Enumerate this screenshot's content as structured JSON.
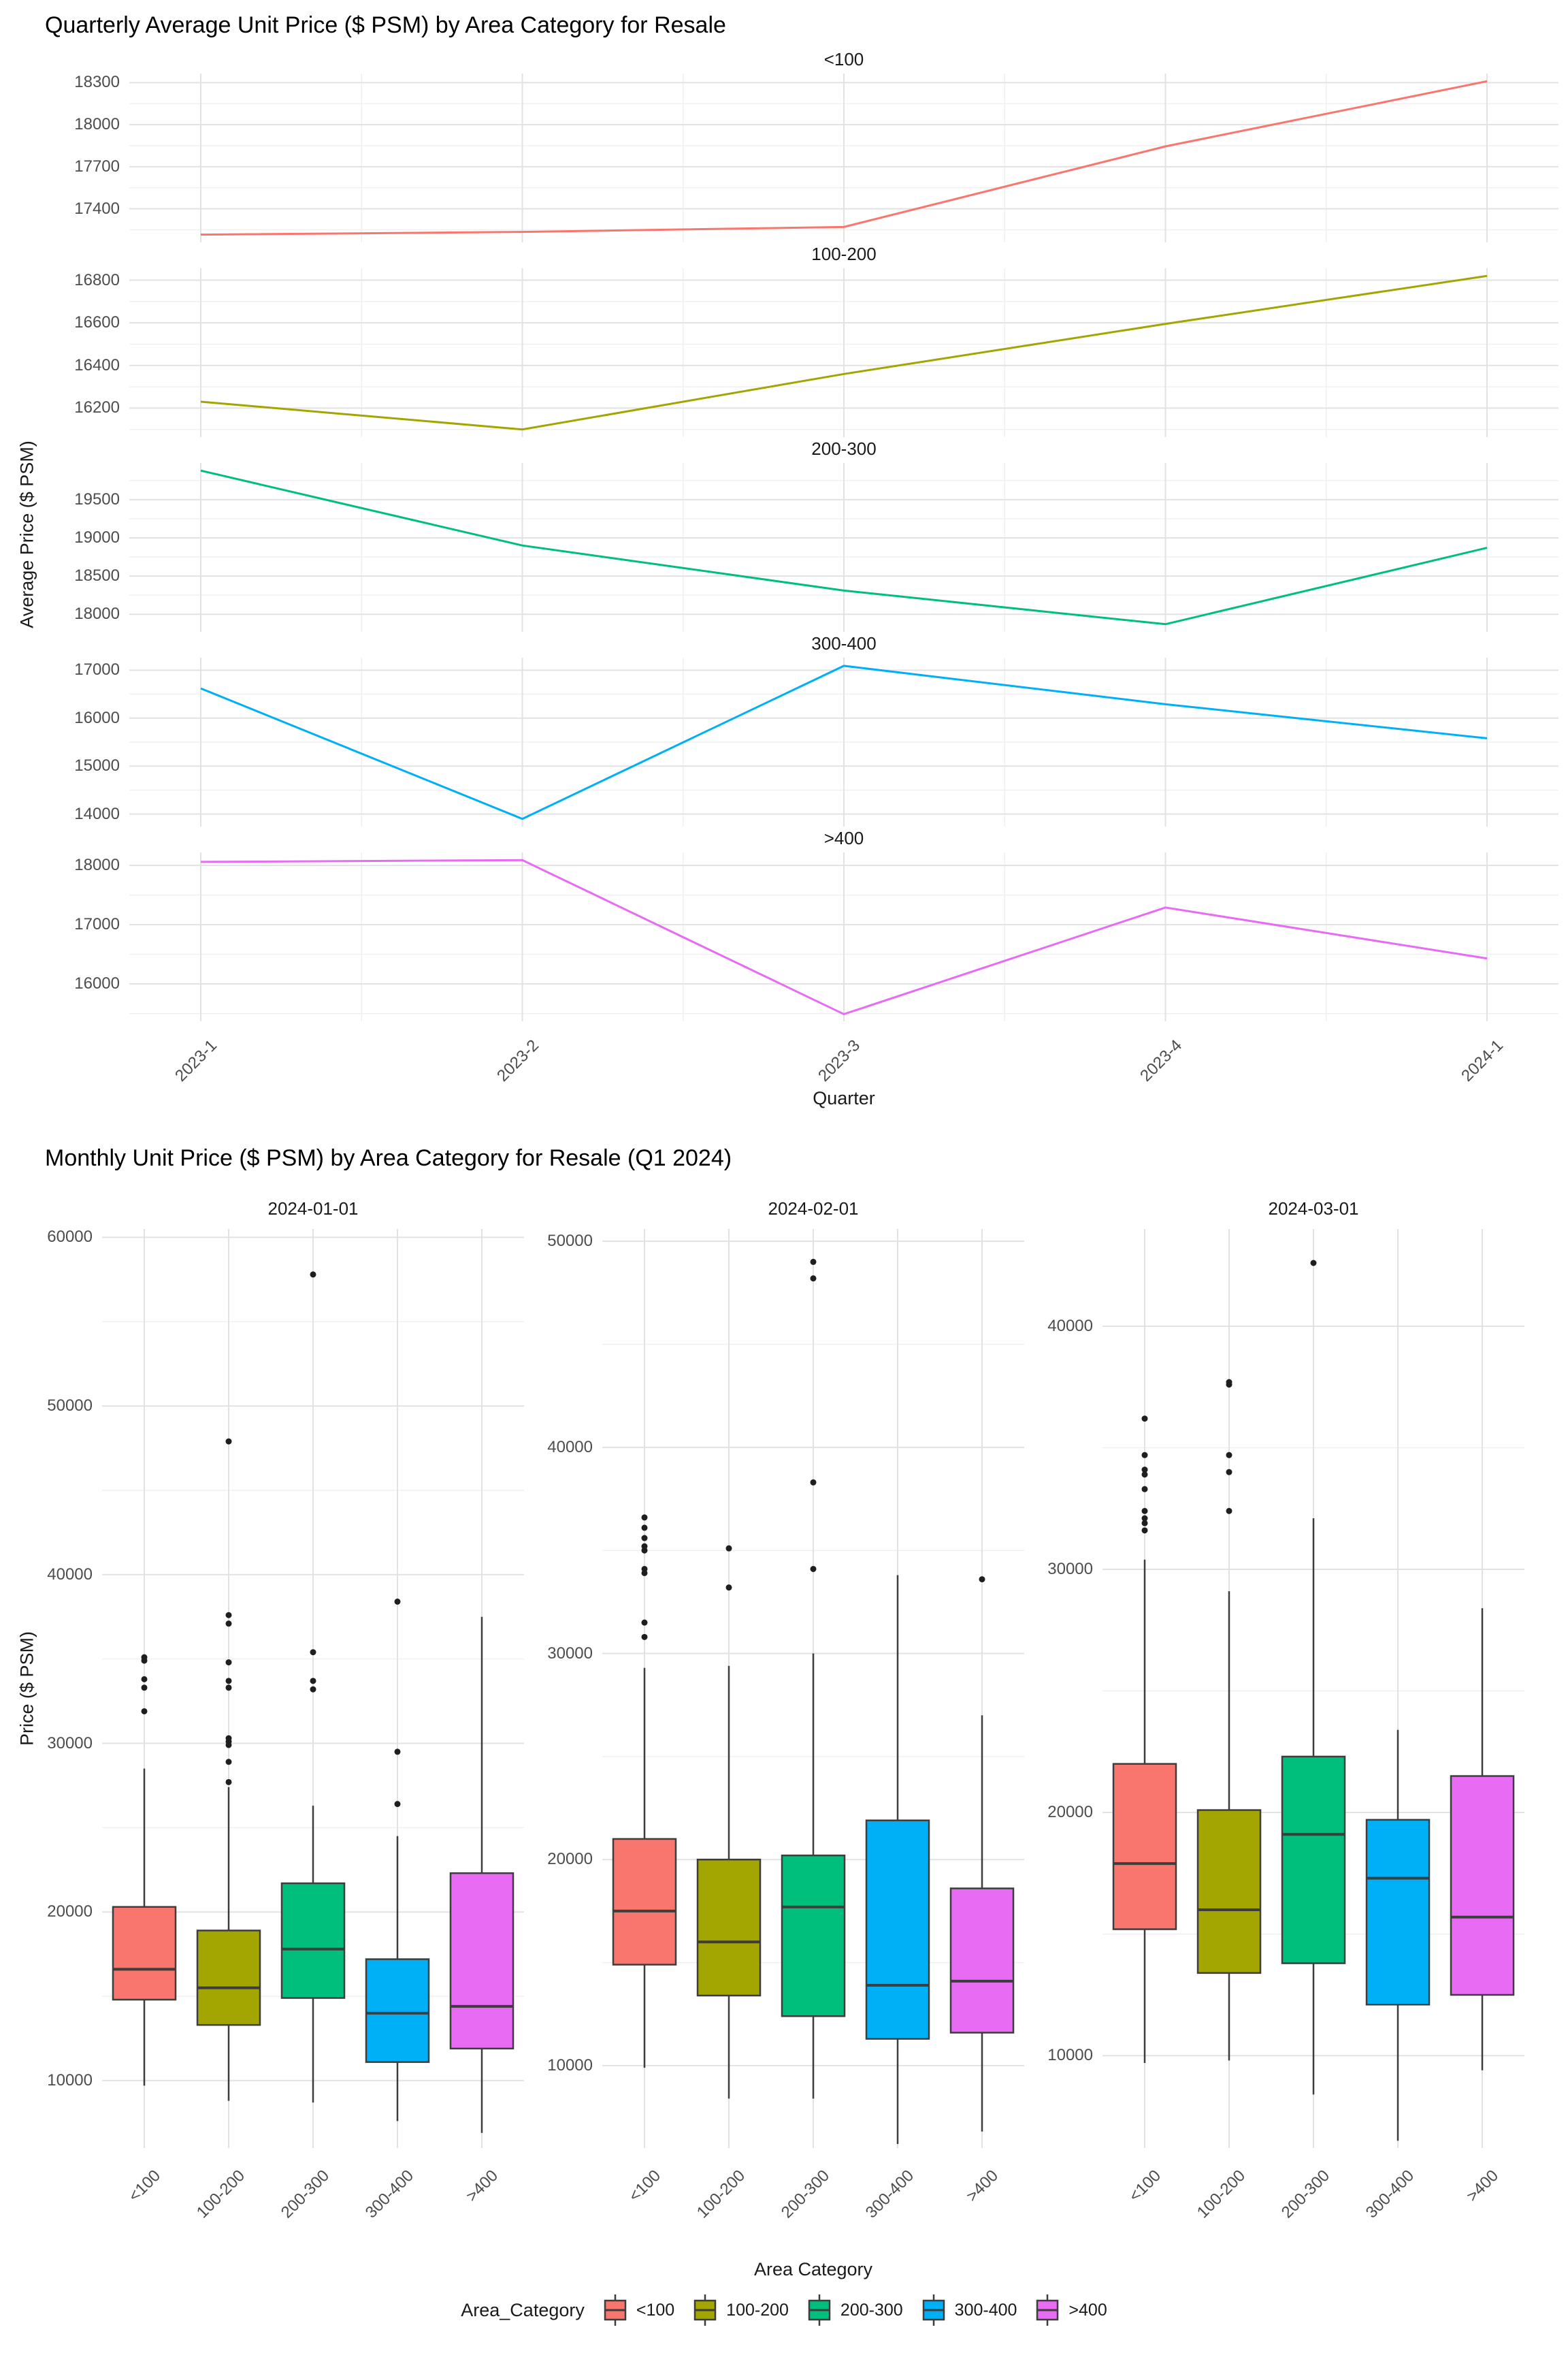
{
  "chart_data": [
    {
      "type": "line",
      "title": "Quarterly Average Unit Price ($ PSM) by Area Category for Resale",
      "xlabel": "Quarter",
      "ylabel": "Average Price ($ PSM)",
      "x_categories": [
        "2023-1",
        "2023-2",
        "2023-3",
        "2023-4",
        "2024-1"
      ],
      "legend_position": "none",
      "grid": "on",
      "facets": [
        {
          "label": "<100",
          "color": "#F8766D",
          "values": [
            17215,
            17235,
            17270,
            17845,
            18310
          ],
          "yticks": [
            17400,
            17700,
            18000,
            18300
          ],
          "yrange": [
            17160,
            18365
          ]
        },
        {
          "label": "100-200",
          "color": "#A3A500",
          "values": [
            16230,
            16100,
            16360,
            16595,
            16820
          ],
          "yticks": [
            16200,
            16400,
            16600,
            16800
          ],
          "yrange": [
            16064,
            16856
          ]
        },
        {
          "label": "200-300",
          "color": "#00BF7D",
          "values": [
            19880,
            18900,
            18310,
            17870,
            18870
          ],
          "yticks": [
            18000,
            18500,
            19000,
            19500
          ],
          "yrange": [
            17770,
            19980
          ]
        },
        {
          "label": "300-400",
          "color": "#00B0F6",
          "values": [
            16620,
            13900,
            17090,
            16290,
            15580
          ],
          "yticks": [
            14000,
            15000,
            16000,
            17000
          ],
          "yrange": [
            13740,
            17260
          ]
        },
        {
          "label": ">400",
          "color": "#E76BF3",
          "values": [
            18060,
            18090,
            15490,
            17290,
            16430
          ],
          "yticks": [
            16000,
            17000,
            18000
          ],
          "yrange": [
            15370,
            18220
          ]
        }
      ]
    },
    {
      "type": "boxplot",
      "title": "Monthly Unit Price ($ PSM) by Area Category for Resale (Q1 2024)",
      "xlabel": "Area Category",
      "ylabel": "Price ($ PSM)",
      "categories": [
        "<100",
        "100-200",
        "200-300",
        "300-400",
        ">400"
      ],
      "colors": [
        "#F8766D",
        "#A3A500",
        "#00BF7D",
        "#00B0F6",
        "#E76BF3"
      ],
      "grid": "on",
      "facets": [
        {
          "label": "2024-01-01",
          "yticks": [
            10000,
            20000,
            30000,
            40000,
            50000,
            60000
          ],
          "yrange": [
            6000,
            60500
          ],
          "boxes": [
            {
              "category": "<100",
              "whisker_low": 9700,
              "q1": 14800,
              "median": 16600,
              "q3": 20300,
              "whisker_high": 28500,
              "outliers": [
                31900,
                33300,
                33800,
                34900,
                35100
              ]
            },
            {
              "category": "100-200",
              "whisker_low": 8800,
              "q1": 13300,
              "median": 15500,
              "q3": 18900,
              "whisker_high": 27400,
              "outliers": [
                27700,
                28900,
                29900,
                30100,
                30300,
                33300,
                33700,
                34800,
                37100,
                37600,
                47900
              ]
            },
            {
              "category": "200-300",
              "whisker_low": 8700,
              "q1": 14900,
              "median": 17800,
              "q3": 21700,
              "whisker_high": 26300,
              "outliers": [
                33200,
                33700,
                35400,
                57800
              ]
            },
            {
              "category": "300-400",
              "whisker_low": 7600,
              "q1": 11100,
              "median": 14000,
              "q3": 17200,
              "whisker_high": 24500,
              "outliers": [
                26400,
                29500,
                38400
              ]
            },
            {
              "category": ">400",
              "whisker_low": 6900,
              "q1": 11900,
              "median": 14400,
              "q3": 22300,
              "whisker_high": 37500,
              "outliers": []
            }
          ]
        },
        {
          "label": "2024-02-01",
          "yticks": [
            10000,
            20000,
            30000,
            40000,
            50000
          ],
          "yrange": [
            6000,
            50600
          ],
          "boxes": [
            {
              "category": "<100",
              "whisker_low": 9900,
              "q1": 14900,
              "median": 17500,
              "q3": 21000,
              "whisker_high": 29300,
              "outliers": [
                30800,
                31500,
                33900,
                34100,
                35000,
                35200,
                35600,
                36100,
                36600
              ]
            },
            {
              "category": "100-200",
              "whisker_low": 8400,
              "q1": 13400,
              "median": 16000,
              "q3": 20000,
              "whisker_high": 29400,
              "outliers": [
                33200,
                35100
              ]
            },
            {
              "category": "200-300",
              "whisker_low": 8400,
              "q1": 12400,
              "median": 17700,
              "q3": 20200,
              "whisker_high": 30000,
              "outliers": [
                34100,
                38300,
                48200,
                49000
              ]
            },
            {
              "category": "300-400",
              "whisker_low": 6200,
              "q1": 11300,
              "median": 13900,
              "q3": 21900,
              "whisker_high": 33800,
              "outliers": []
            },
            {
              "category": ">400",
              "whisker_low": 6800,
              "q1": 11600,
              "median": 14100,
              "q3": 18600,
              "whisker_high": 27000,
              "outliers": [
                33600
              ]
            }
          ]
        },
        {
          "label": "2024-03-01",
          "yticks": [
            10000,
            20000,
            30000,
            40000
          ],
          "yrange": [
            6200,
            44000
          ],
          "boxes": [
            {
              "category": "<100",
              "whisker_low": 9700,
              "q1": 15200,
              "median": 17900,
              "q3": 22000,
              "whisker_high": 30400,
              "outliers": [
                31600,
                31900,
                32100,
                32400,
                33300,
                33900,
                34100,
                34700,
                36200
              ]
            },
            {
              "category": "100-200",
              "whisker_low": 9800,
              "q1": 13400,
              "median": 16000,
              "q3": 20100,
              "whisker_high": 29100,
              "outliers": [
                32400,
                34000,
                34700,
                37600,
                37700
              ]
            },
            {
              "category": "200-300",
              "whisker_low": 8400,
              "q1": 13800,
              "median": 19100,
              "q3": 22300,
              "whisker_high": 32100,
              "outliers": [
                42600
              ]
            },
            {
              "category": "300-400",
              "whisker_low": 6500,
              "q1": 12100,
              "median": 17300,
              "q3": 19700,
              "whisker_high": 23400,
              "outliers": []
            },
            {
              "category": ">400",
              "whisker_low": 9400,
              "q1": 12500,
              "median": 15700,
              "q3": 21500,
              "whisker_high": 28400,
              "outliers": []
            }
          ]
        }
      ]
    }
  ],
  "legend": {
    "title": "Area_Category",
    "items": [
      {
        "label": "<100",
        "color": "#F8766D"
      },
      {
        "label": "100-200",
        "color": "#A3A500"
      },
      {
        "label": "200-300",
        "color": "#00BF7D"
      },
      {
        "label": "300-400",
        "color": "#00B0F6"
      },
      {
        "label": ">400",
        "color": "#E76BF3"
      }
    ]
  },
  "style_colors": {
    "grid_major": "#e2e2e2",
    "grid_minor": "#f0f0f0",
    "box_stroke": "#3d3d3d",
    "outlier": "#1f1f1f",
    "tick_text": "#4d4d4d"
  }
}
